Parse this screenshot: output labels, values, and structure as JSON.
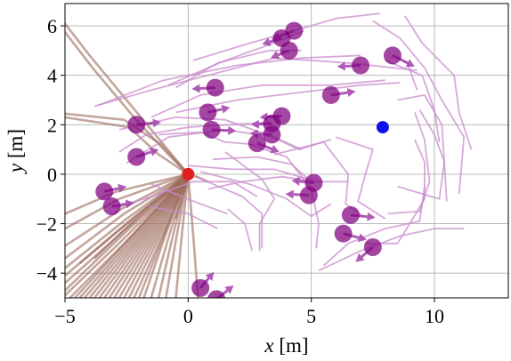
{
  "chart_data": {
    "type": "scatter",
    "title": "",
    "xlabel_var": "x",
    "xlabel_unit": " [m]",
    "ylabel_var": "y",
    "ylabel_unit": " [m]",
    "xlim": [
      -5,
      13
    ],
    "ylim": [
      -5,
      6.9
    ],
    "xticks": [
      -5,
      0,
      5,
      10
    ],
    "yticks": [
      -4,
      -2,
      0,
      2,
      4,
      6
    ],
    "xtick_labels": [
      "−5",
      "0",
      "5",
      "10"
    ],
    "ytick_labels": [
      "−4",
      "−2",
      "0",
      "2",
      "4",
      "6"
    ],
    "grid": true,
    "colors": {
      "agent": "#800080",
      "agent_arrow": "#a040a8",
      "agent_trail": "#c88ccc",
      "robot": "#e02020",
      "goal": "#1010ee",
      "robot_trail": "#9c6a5c"
    },
    "robot": {
      "x": 0,
      "y": 0
    },
    "goal": {
      "x": 7.9,
      "y": 1.9
    },
    "agents": [
      {
        "x": 4.3,
        "y": 5.8,
        "dx": -0.9,
        "dy": -0.35
      },
      {
        "x": 3.8,
        "y": 5.5,
        "dx": -0.8,
        "dy": -0.25
      },
      {
        "x": 4.1,
        "y": 5.0,
        "dx": -0.75,
        "dy": -0.3
      },
      {
        "x": 7.0,
        "y": 4.4,
        "dx": -0.95,
        "dy": -0.05
      },
      {
        "x": 8.3,
        "y": 4.8,
        "dx": 0.9,
        "dy": -0.45
      },
      {
        "x": 1.1,
        "y": 3.5,
        "dx": -0.95,
        "dy": -0.05
      },
      {
        "x": 5.8,
        "y": 3.2,
        "dx": 1.0,
        "dy": 0.15
      },
      {
        "x": 0.8,
        "y": 2.5,
        "dx": 0.9,
        "dy": 0.2
      },
      {
        "x": -2.1,
        "y": 2.0,
        "dx": 1.0,
        "dy": 0.1
      },
      {
        "x": 3.8,
        "y": 2.35,
        "dx": -0.9,
        "dy": -0.05
      },
      {
        "x": 3.4,
        "y": 2.05,
        "dx": -0.85,
        "dy": -0.05
      },
      {
        "x": 0.95,
        "y": 1.8,
        "dx": 1.0,
        "dy": -0.05
      },
      {
        "x": 3.4,
        "y": 1.6,
        "dx": -0.9,
        "dy": 0.05
      },
      {
        "x": 2.8,
        "y": 1.25,
        "dx": 0.9,
        "dy": -0.35
      },
      {
        "x": -2.1,
        "y": 0.7,
        "dx": 0.9,
        "dy": 0.3
      },
      {
        "x": 5.1,
        "y": -0.35,
        "dx": -0.9,
        "dy": 0.1
      },
      {
        "x": 4.9,
        "y": -0.85,
        "dx": -0.95,
        "dy": 0.05
      },
      {
        "x": -3.4,
        "y": -0.7,
        "dx": 0.9,
        "dy": 0.2
      },
      {
        "x": -3.1,
        "y": -1.3,
        "dx": 0.9,
        "dy": 0.15
      },
      {
        "x": 6.6,
        "y": -1.65,
        "dx": 1.0,
        "dy": -0.1
      },
      {
        "x": 6.3,
        "y": -2.4,
        "dx": 0.95,
        "dy": -0.25
      },
      {
        "x": 7.5,
        "y": -2.95,
        "dx": -0.7,
        "dy": -0.6
      },
      {
        "x": 0.5,
        "y": -4.6,
        "dx": 0.55,
        "dy": 0.65
      },
      {
        "x": 1.15,
        "y": -5.05,
        "dx": 0.7,
        "dy": 0.55
      }
    ],
    "agent_trails": [
      [
        [
          -3.8,
          2.75
        ],
        [
          -1.5,
          3.4
        ],
        [
          1.2,
          4.1
        ],
        [
          3.5,
          4.7
        ],
        [
          6.5,
          4.5
        ],
        [
          9.3,
          4.2
        ]
      ],
      [
        [
          -3.6,
          2.8
        ],
        [
          -1.0,
          3.8
        ],
        [
          2.0,
          4.4
        ],
        [
          4.6,
          4.7
        ],
        [
          7.0,
          4.8
        ]
      ],
      [
        [
          -1.5,
          2.3
        ],
        [
          0.5,
          3.2
        ],
        [
          3.0,
          3.6
        ],
        [
          5.8,
          3.6
        ],
        [
          8.0,
          3.8
        ]
      ],
      [
        [
          -0.5,
          2.5
        ],
        [
          2.0,
          3.0
        ],
        [
          4.5,
          3.3
        ],
        [
          7.0,
          3.6
        ],
        [
          8.6,
          3.7
        ]
      ],
      [
        [
          0.2,
          4.6
        ],
        [
          2.5,
          5.3
        ],
        [
          4.3,
          5.8
        ],
        [
          6.0,
          6.3
        ],
        [
          7.8,
          6.5
        ]
      ],
      [
        [
          -0.8,
          3.6
        ],
        [
          1.5,
          4.6
        ],
        [
          3.2,
          5.2
        ],
        [
          4.7,
          5.8
        ]
      ],
      [
        [
          -2.8,
          1.8
        ],
        [
          -0.5,
          2.3
        ],
        [
          1.5,
          2.2
        ],
        [
          3.2,
          1.6
        ],
        [
          4.5,
          1.0
        ],
        [
          5.8,
          1.4
        ]
      ],
      [
        [
          -2.5,
          0.45
        ],
        [
          -0.8,
          1.5
        ],
        [
          1.5,
          1.8
        ],
        [
          3.5,
          1.5
        ],
        [
          4.6,
          1.0
        ]
      ],
      [
        [
          0.0,
          0.35
        ],
        [
          1.8,
          0.2
        ],
        [
          3.5,
          0.2
        ],
        [
          5.2,
          -0.3
        ],
        [
          6.5,
          -0.3
        ]
      ],
      [
        [
          0.5,
          0.1
        ],
        [
          2.5,
          -0.4
        ],
        [
          4.0,
          -1.0
        ],
        [
          5.0,
          -1.7
        ],
        [
          5.8,
          -1.2
        ]
      ],
      [
        [
          1.0,
          0.6
        ],
        [
          2.8,
          0.7
        ],
        [
          4.2,
          0.4
        ],
        [
          5.0,
          -0.3
        ]
      ],
      [
        [
          0.3,
          -0.1
        ],
        [
          2.2,
          -0.9
        ],
        [
          3.0,
          -1.6
        ],
        [
          3.0,
          -3.0
        ]
      ],
      [
        [
          1.5,
          0.9
        ],
        [
          3.0,
          -0.2
        ],
        [
          3.5,
          -1.0
        ],
        [
          2.9,
          -2.0
        ],
        [
          2.9,
          -3.1
        ]
      ],
      [
        [
          2.5,
          1.2
        ],
        [
          4.0,
          0.7
        ],
        [
          5.0,
          -0.6
        ],
        [
          5.3,
          -2.0
        ],
        [
          5.2,
          -3.0
        ]
      ],
      [
        [
          3.5,
          0.8
        ],
        [
          5.5,
          1.3
        ],
        [
          6.5,
          0.0
        ],
        [
          6.4,
          -1.2
        ],
        [
          7.1,
          -1.7
        ]
      ],
      [
        [
          6.0,
          1.5
        ],
        [
          7.5,
          1.0
        ],
        [
          7.2,
          0.0
        ],
        [
          6.9,
          -1.1
        ],
        [
          8.0,
          -1.8
        ]
      ],
      [
        [
          5.3,
          -3.9
        ],
        [
          7.0,
          -3.1
        ],
        [
          8.6,
          -2.5
        ],
        [
          10.0,
          -2.2
        ],
        [
          11.2,
          -2.2
        ]
      ],
      [
        [
          5.5,
          -3.7
        ],
        [
          6.5,
          -2.8
        ],
        [
          8.0,
          -2.2
        ],
        [
          9.4,
          -1.9
        ],
        [
          9.6,
          -0.5
        ]
      ],
      [
        [
          7.2,
          -2.8
        ],
        [
          8.5,
          -2.8
        ],
        [
          9.0,
          -2.0
        ],
        [
          9.6,
          -1.0
        ],
        [
          9.6,
          0.5
        ],
        [
          9.2,
          1.4
        ]
      ],
      [
        [
          8.1,
          -1.6
        ],
        [
          9.4,
          -1.5
        ],
        [
          9.8,
          -0.3
        ],
        [
          9.6,
          1.4
        ],
        [
          9.2,
          2.5
        ]
      ],
      [
        [
          8.5,
          -0.5
        ],
        [
          10.2,
          -1.0
        ],
        [
          10.4,
          0.5
        ],
        [
          10.0,
          1.6
        ],
        [
          9.4,
          2.6
        ]
      ],
      [
        [
          8.5,
          3.0
        ],
        [
          9.6,
          3.2
        ],
        [
          10.3,
          2.0
        ],
        [
          10.4,
          0.5
        ],
        [
          10.5,
          -1.1
        ]
      ],
      [
        [
          8.0,
          4.6
        ],
        [
          9.5,
          4.0
        ],
        [
          10.0,
          2.6
        ],
        [
          10.2,
          1.3
        ]
      ],
      [
        [
          7.5,
          6.2
        ],
        [
          8.6,
          5.5
        ],
        [
          9.6,
          4.3
        ],
        [
          10.3,
          3.0
        ],
        [
          11.2,
          1.5
        ],
        [
          11.0,
          -0.8
        ]
      ],
      [
        [
          8.8,
          6.4
        ],
        [
          9.5,
          5.3
        ],
        [
          10.8,
          4.0
        ],
        [
          11.0,
          2.5
        ],
        [
          11.5,
          1.0
        ]
      ],
      [
        [
          8.3,
          4.8
        ],
        [
          8.9,
          4.5
        ],
        [
          9.3,
          3.4
        ]
      ],
      [
        [
          -0.5,
          3.5
        ],
        [
          1.2,
          4.5
        ],
        [
          3.3,
          5.0
        ],
        [
          4.6,
          5.0
        ]
      ],
      [
        [
          -1.2,
          1.6
        ],
        [
          0.5,
          1.7
        ],
        [
          1.5,
          1.3
        ],
        [
          2.7,
          1.2
        ]
      ],
      [
        [
          -2.8,
          0.9
        ],
        [
          -1.7,
          1.6
        ],
        [
          0.0,
          1.9
        ],
        [
          3.3,
          2.1
        ]
      ],
      [
        [
          -2.9,
          -1.35
        ],
        [
          -1.5,
          -0.9
        ],
        [
          0.2,
          -0.3
        ],
        [
          1.8,
          -0.3
        ],
        [
          2.8,
          -0.9
        ]
      ],
      [
        [
          -1.6,
          -1.3
        ],
        [
          0.0,
          -1.6
        ],
        [
          1.2,
          -2.2
        ]
      ],
      [
        [
          1.6,
          -1.4
        ],
        [
          2.3,
          -2.0
        ],
        [
          2.6,
          -3.1
        ]
      ],
      [
        [
          0.8,
          -0.6
        ],
        [
          2.2,
          -0.3
        ],
        [
          3.8,
          -0.1
        ],
        [
          5.2,
          -0.3
        ]
      ],
      [
        [
          -1.5,
          -0.4
        ],
        [
          0.5,
          -1.2
        ],
        [
          1.6,
          -1.6
        ]
      ]
    ],
    "robot_trails": [
      [
        [
          -5.4,
          6.6
        ],
        [
          -4.0,
          4.8
        ],
        [
          -2.5,
          3.0
        ],
        [
          -1.0,
          1.2
        ],
        [
          0.0,
          0.0
        ]
      ],
      [
        [
          -5.2,
          6.0
        ],
        [
          -3.8,
          4.2
        ],
        [
          -2.2,
          2.3
        ],
        [
          -0.8,
          0.8
        ],
        [
          0.0,
          0.0
        ]
      ],
      [
        [
          -5.0,
          2.45
        ],
        [
          -2.6,
          2.2
        ],
        [
          -1.1,
          1.2
        ],
        [
          0.0,
          0.0
        ]
      ],
      [
        [
          -5.0,
          2.3
        ],
        [
          -2.4,
          1.9
        ],
        [
          -1.2,
          0.8
        ],
        [
          0.0,
          0.0
        ]
      ],
      [
        [
          -5.0,
          -4.7
        ],
        [
          -2.5,
          -2.3
        ],
        [
          0.0,
          0.0
        ]
      ],
      [
        [
          -5.0,
          -4.9
        ],
        [
          -2.6,
          -2.6
        ],
        [
          0.0,
          0.0
        ]
      ],
      [
        [
          -5.0,
          -4.4
        ],
        [
          -2.4,
          -2.1
        ],
        [
          0.0,
          0.0
        ]
      ],
      [
        [
          -4.8,
          -5.0
        ],
        [
          -2.3,
          -2.5
        ],
        [
          0.0,
          0.0
        ]
      ],
      [
        [
          -4.6,
          -5.0
        ],
        [
          -2.2,
          -2.4
        ],
        [
          0.0,
          0.0
        ]
      ],
      [
        [
          -4.4,
          -5.0
        ],
        [
          -2.1,
          -2.4
        ],
        [
          0.0,
          0.0
        ]
      ],
      [
        [
          -4.2,
          -5.0
        ],
        [
          -2.0,
          -2.4
        ],
        [
          0.0,
          0.0
        ]
      ],
      [
        [
          -4.0,
          -5.0
        ],
        [
          -1.9,
          -2.4
        ],
        [
          0.0,
          0.0
        ]
      ],
      [
        [
          -3.8,
          -5.0
        ],
        [
          -1.8,
          -2.4
        ],
        [
          0.0,
          0.0
        ]
      ],
      [
        [
          -3.6,
          -5.0
        ],
        [
          -1.7,
          -2.4
        ],
        [
          0.0,
          0.0
        ]
      ],
      [
        [
          -3.4,
          -5.0
        ],
        [
          -1.6,
          -2.4
        ],
        [
          0.0,
          0.0
        ]
      ],
      [
        [
          -3.2,
          -5.0
        ],
        [
          -1.5,
          -2.4
        ],
        [
          0.0,
          0.0
        ]
      ],
      [
        [
          -3.0,
          -5.0
        ],
        [
          -1.4,
          -2.4
        ],
        [
          0.0,
          0.0
        ]
      ],
      [
        [
          -2.8,
          -5.0
        ],
        [
          -1.3,
          -2.4
        ],
        [
          0.0,
          0.0
        ]
      ],
      [
        [
          -2.6,
          -5.0
        ],
        [
          -1.2,
          -2.4
        ],
        [
          0.0,
          0.0
        ]
      ],
      [
        [
          -2.4,
          -5.0
        ],
        [
          -1.1,
          -2.4
        ],
        [
          0.0,
          0.0
        ]
      ],
      [
        [
          -2.2,
          -5.0
        ],
        [
          -1.0,
          -2.4
        ],
        [
          0.0,
          0.0
        ]
      ],
      [
        [
          -2.0,
          -5.0
        ],
        [
          -0.95,
          -2.4
        ],
        [
          0.0,
          0.0
        ]
      ],
      [
        [
          -1.8,
          -5.0
        ],
        [
          -0.9,
          -2.4
        ],
        [
          0.0,
          0.0
        ]
      ],
      [
        [
          -1.5,
          -5.0
        ],
        [
          -0.75,
          -2.4
        ],
        [
          0.0,
          0.0
        ]
      ],
      [
        [
          -1.2,
          -5.0
        ],
        [
          -0.6,
          -2.4
        ],
        [
          0.0,
          0.0
        ]
      ],
      [
        [
          -0.9,
          -5.0
        ],
        [
          -0.45,
          -2.4
        ],
        [
          0.0,
          0.0
        ]
      ],
      [
        [
          -5.0,
          -4.1
        ],
        [
          -2.4,
          -1.9
        ],
        [
          0.0,
          0.0
        ]
      ],
      [
        [
          -5.0,
          -3.8
        ],
        [
          -2.5,
          -1.8
        ],
        [
          0.0,
          0.0
        ]
      ],
      [
        [
          -5.0,
          -3.4
        ],
        [
          -2.6,
          -1.6
        ],
        [
          0.0,
          0.0
        ]
      ],
      [
        [
          -5.0,
          -2.9
        ],
        [
          -2.7,
          -1.4
        ],
        [
          0.0,
          0.0
        ]
      ],
      [
        [
          -5.0,
          -2.2
        ],
        [
          -2.8,
          -1.0
        ],
        [
          0.0,
          0.0
        ]
      ],
      [
        [
          -5.0,
          -1.6
        ],
        [
          -2.9,
          -0.7
        ],
        [
          0.0,
          0.0
        ]
      ],
      [
        [
          -4.4,
          -3.6
        ],
        [
          -2.0,
          -1.6
        ],
        [
          0.0,
          0.0
        ]
      ],
      [
        [
          -3.8,
          -3.4
        ],
        [
          -1.8,
          -1.5
        ],
        [
          0.0,
          0.0
        ]
      ],
      [
        [
          -0.5,
          -5.0
        ],
        [
          -0.25,
          -2.4
        ],
        [
          0.0,
          0.0
        ]
      ],
      [
        [
          0.4,
          -5.0
        ],
        [
          0.2,
          -2.4
        ],
        [
          0.0,
          0.0
        ]
      ],
      [
        [
          0.8,
          -0.3
        ],
        [
          0.35,
          -0.1
        ],
        [
          0.0,
          0.0
        ]
      ],
      [
        [
          -0.5,
          -1.8
        ],
        [
          -0.2,
          -0.8
        ],
        [
          0.0,
          0.0
        ]
      ]
    ]
  }
}
